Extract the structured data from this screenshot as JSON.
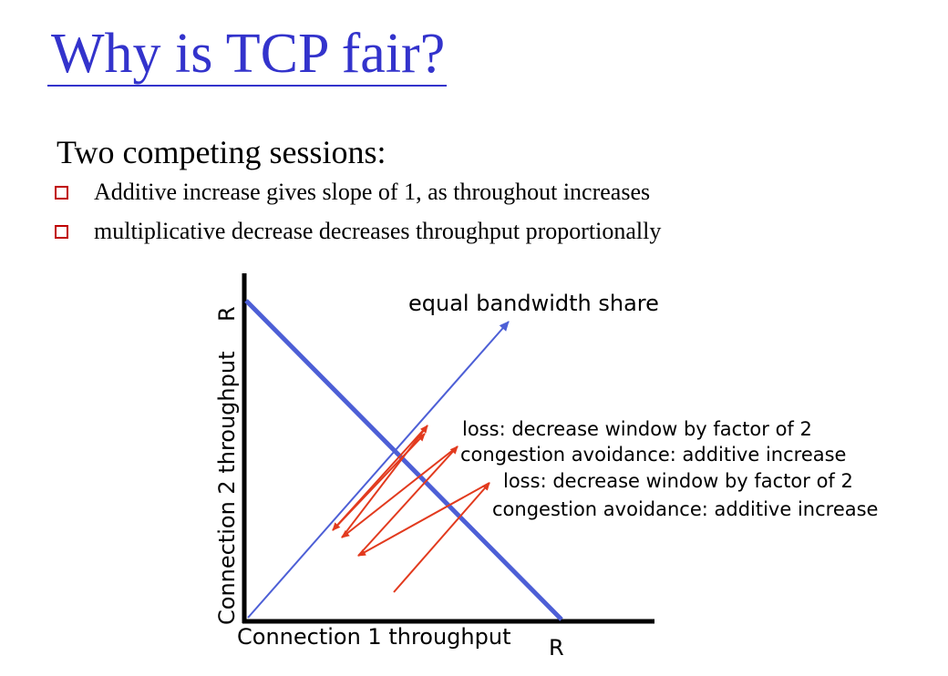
{
  "slide": {
    "title": "Why is TCP fair?",
    "subtitle": "Two competing sessions:",
    "bullets": [
      "Additive increase gives slope of 1, as throughout increases",
      "multiplicative decrease decreases throughput proportionally"
    ]
  },
  "diagram": {
    "x_axis_label": "Connection 1 throughput",
    "y_axis_label": "Connection 2 throughput",
    "x_axis_end_label": "R",
    "y_axis_end_label": "R",
    "equal_share_label": "equal bandwidth share",
    "annotations": [
      "loss: decrease window by factor of 2",
      "congestion avoidance: additive increase",
      "loss: decrease window by factor of 2",
      "congestion avoidance: additive increase"
    ],
    "colors": {
      "title": "#3333cc",
      "axes": "#000000",
      "lines": "#4d5fd6",
      "arrows": "#e23a1e",
      "bullets": "#c00000"
    }
  }
}
